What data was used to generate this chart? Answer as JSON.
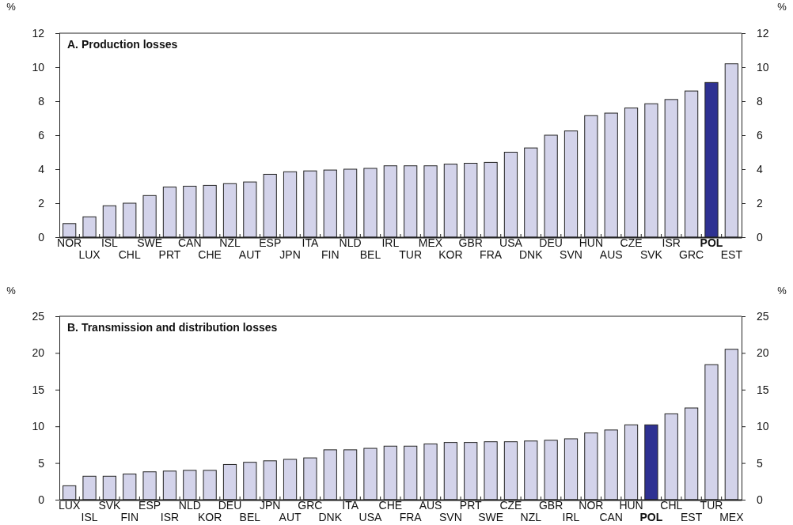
{
  "chart_data": [
    {
      "type": "bar",
      "title": "A. Production losses",
      "ylabel": "%",
      "y2label": "%",
      "categories": [
        "NOR",
        "LUX",
        "ISL",
        "CHL",
        "SWE",
        "PRT",
        "CAN",
        "CHE",
        "NZL",
        "AUT",
        "ESP",
        "JPN",
        "ITA",
        "FIN",
        "NLD",
        "BEL",
        "IRL",
        "TUR",
        "MEX",
        "KOR",
        "GBR",
        "FRA",
        "USA",
        "DNK",
        "DEU",
        "SVN",
        "HUN",
        "AUS",
        "CZE",
        "SVK",
        "ISR",
        "GRC",
        "POL",
        "EST"
      ],
      "values": [
        0.8,
        1.2,
        1.85,
        2.0,
        2.45,
        2.95,
        3.0,
        3.05,
        3.15,
        3.25,
        3.7,
        3.85,
        3.9,
        3.95,
        4.0,
        4.05,
        4.2,
        4.2,
        4.2,
        4.3,
        4.35,
        4.4,
        5.0,
        5.25,
        6.0,
        6.25,
        7.15,
        7.3,
        7.6,
        7.85,
        8.1,
        8.6,
        9.1,
        10.2
      ],
      "colors": [
        "#d3d3ea",
        "#d3d3ea",
        "#d3d3ea",
        "#d3d3ea",
        "#d3d3ea",
        "#d3d3ea",
        "#d3d3ea",
        "#d3d3ea",
        "#d3d3ea",
        "#d3d3ea",
        "#d3d3ea",
        "#d3d3ea",
        "#d3d3ea",
        "#d3d3ea",
        "#d3d3ea",
        "#d3d3ea",
        "#d3d3ea",
        "#d3d3ea",
        "#d3d3ea",
        "#d3d3ea",
        "#d3d3ea",
        "#d3d3ea",
        "#d3d3ea",
        "#d3d3ea",
        "#d3d3ea",
        "#d3d3ea",
        "#d3d3ea",
        "#d3d3ea",
        "#d3d3ea",
        "#d3d3ea",
        "#d3d3ea",
        "#d3d3ea",
        "#2e3192",
        "#d3d3ea"
      ],
      "ylim": [
        0,
        12
      ],
      "yticks": [
        0,
        2,
        4,
        6,
        8,
        10,
        12
      ],
      "y2lim": [
        0,
        12
      ],
      "y2ticks": [
        0,
        2,
        4,
        6,
        8,
        10,
        12
      ]
    },
    {
      "type": "bar",
      "title": "B. Transmission and distribution losses",
      "ylabel": "%",
      "y2label": "%",
      "categories": [
        "LUX",
        "ISL",
        "SVK",
        "FIN",
        "ESP",
        "ISR",
        "NLD",
        "KOR",
        "DEU",
        "BEL",
        "JPN",
        "AUT",
        "GRC",
        "DNK",
        "ITA",
        "USA",
        "CHE",
        "FRA",
        "AUS",
        "SVN",
        "PRT",
        "SWE",
        "CZE",
        "NZL",
        "GBR",
        "IRL",
        "NOR",
        "CAN",
        "HUN",
        "POL",
        "CHL",
        "EST",
        "TUR",
        "MEX"
      ],
      "values": [
        1.9,
        3.2,
        3.2,
        3.5,
        3.8,
        3.9,
        4.0,
        4.0,
        4.8,
        5.1,
        5.3,
        5.5,
        5.7,
        6.8,
        6.8,
        7.0,
        7.3,
        7.3,
        7.6,
        7.8,
        7.8,
        7.9,
        7.9,
        8.0,
        8.1,
        8.3,
        9.1,
        9.5,
        10.2,
        10.2,
        11.7,
        12.5,
        18.4,
        20.5
      ],
      "colors": [
        "#d3d3ea",
        "#d3d3ea",
        "#d3d3ea",
        "#d3d3ea",
        "#d3d3ea",
        "#d3d3ea",
        "#d3d3ea",
        "#d3d3ea",
        "#d3d3ea",
        "#d3d3ea",
        "#d3d3ea",
        "#d3d3ea",
        "#d3d3ea",
        "#d3d3ea",
        "#d3d3ea",
        "#d3d3ea",
        "#d3d3ea",
        "#d3d3ea",
        "#d3d3ea",
        "#d3d3ea",
        "#d3d3ea",
        "#d3d3ea",
        "#d3d3ea",
        "#d3d3ea",
        "#d3d3ea",
        "#d3d3ea",
        "#d3d3ea",
        "#d3d3ea",
        "#d3d3ea",
        "#2e3192",
        "#d3d3ea",
        "#d3d3ea",
        "#d3d3ea",
        "#d3d3ea"
      ],
      "ylim": [
        0,
        25
      ],
      "yticks": [
        0,
        5,
        10,
        15,
        20,
        25
      ],
      "y2lim": [
        0,
        25
      ],
      "y2ticks": [
        0,
        5,
        10,
        15,
        20,
        25
      ]
    }
  ]
}
